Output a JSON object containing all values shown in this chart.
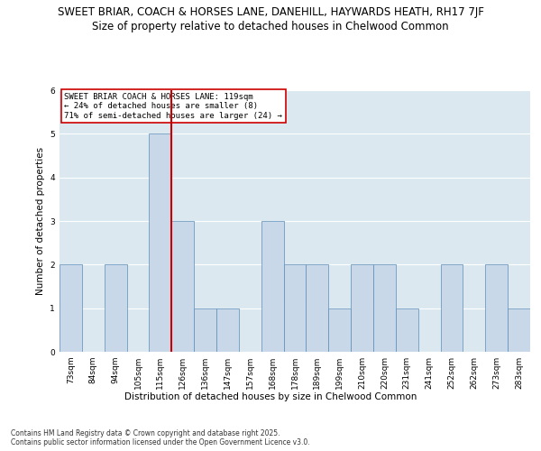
{
  "title_line1": "SWEET BRIAR, COACH & HORSES LANE, DANEHILL, HAYWARDS HEATH, RH17 7JF",
  "title_line2": "Size of property relative to detached houses in Chelwood Common",
  "xlabel": "Distribution of detached houses by size in Chelwood Common",
  "ylabel": "Number of detached properties",
  "categories": [
    "73sqm",
    "84sqm",
    "94sqm",
    "105sqm",
    "115sqm",
    "126sqm",
    "136sqm",
    "147sqm",
    "157sqm",
    "168sqm",
    "178sqm",
    "189sqm",
    "199sqm",
    "210sqm",
    "220sqm",
    "231sqm",
    "241sqm",
    "252sqm",
    "262sqm",
    "273sqm",
    "283sqm"
  ],
  "values": [
    2,
    0,
    2,
    0,
    5,
    3,
    1,
    1,
    0,
    3,
    2,
    2,
    1,
    2,
    2,
    1,
    0,
    2,
    0,
    2,
    1
  ],
  "bar_color": "#c8d8e8",
  "bar_edge_color": "#5b8db8",
  "highlight_line_color": "#cc0000",
  "annotation_text": "SWEET BRIAR COACH & HORSES LANE: 119sqm\n← 24% of detached houses are smaller (8)\n71% of semi-detached houses are larger (24) →",
  "annotation_box_color": "#ffffff",
  "annotation_box_edge": "#cc0000",
  "ylim": [
    0,
    6
  ],
  "yticks": [
    0,
    1,
    2,
    3,
    4,
    5,
    6
  ],
  "background_color": "#dce8f0",
  "footer_text": "Contains HM Land Registry data © Crown copyright and database right 2025.\nContains public sector information licensed under the Open Government Licence v3.0.",
  "title_fontsize": 8.5,
  "subtitle_fontsize": 8.5,
  "axis_label_fontsize": 7.5,
  "tick_fontsize": 6.5,
  "annotation_fontsize": 6.5,
  "footer_fontsize": 5.5
}
